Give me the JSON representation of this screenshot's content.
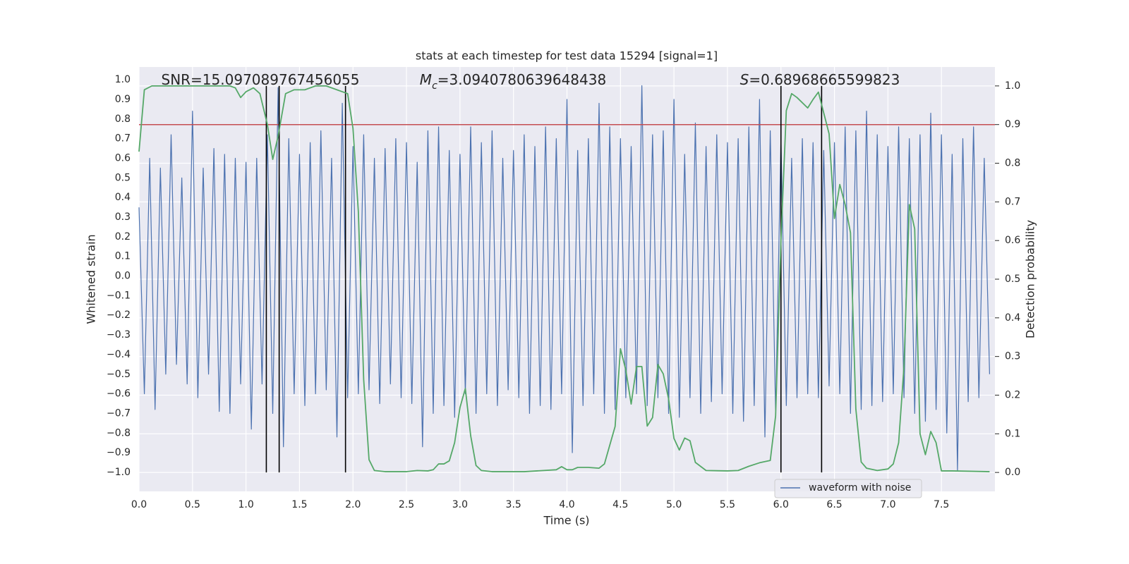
{
  "chart_data": {
    "type": "line",
    "title": "stats at each timestep for test data 15294 [signal=1]",
    "xlabel": "Time (s)",
    "ylabel": "Whitened strain",
    "y2label": "Detection probability",
    "xlim": [
      0,
      8.0
    ],
    "ylim": [
      -1.097,
      1.065
    ],
    "y2lim": [
      -0.049,
      1.049
    ],
    "xticks": [
      {
        "value": 0,
        "label": "0.0"
      },
      {
        "value": 0.5,
        "label": "0.5"
      },
      {
        "value": 1,
        "label": "1.0"
      },
      {
        "value": 1.5,
        "label": "1.5"
      },
      {
        "value": 2,
        "label": "2.0"
      },
      {
        "value": 2.5,
        "label": "2.5"
      },
      {
        "value": 3,
        "label": "3.0"
      },
      {
        "value": 3.5,
        "label": "3.5"
      },
      {
        "value": 4,
        "label": "4.0"
      },
      {
        "value": 4.5,
        "label": "4.5"
      },
      {
        "value": 5,
        "label": "5.0"
      },
      {
        "value": 5.5,
        "label": "5.5"
      },
      {
        "value": 6,
        "label": "6.0"
      },
      {
        "value": 6.5,
        "label": "6.5"
      },
      {
        "value": 7,
        "label": "7.0"
      },
      {
        "value": 7.5,
        "label": "7.5"
      }
    ],
    "yticks": [
      {
        "value": 1,
        "label": "1.0"
      },
      {
        "value": 0.9,
        "label": "0.9"
      },
      {
        "value": 0.8,
        "label": "0.8"
      },
      {
        "value": 0.7,
        "label": "0.7"
      },
      {
        "value": 0.6,
        "label": "0.6"
      },
      {
        "value": 0.5,
        "label": "0.5"
      },
      {
        "value": 0.4,
        "label": "0.4"
      },
      {
        "value": 0.3,
        "label": "0.3"
      },
      {
        "value": 0.2,
        "label": "0.2"
      },
      {
        "value": 0.1,
        "label": "0.1"
      },
      {
        "value": 0,
        "label": "0.0"
      },
      {
        "value": -0.1,
        "label": "−0.1"
      },
      {
        "value": -0.2,
        "label": "−0.2"
      },
      {
        "value": -0.3,
        "label": "−0.3"
      },
      {
        "value": -0.4,
        "label": "−0.4"
      },
      {
        "value": -0.5,
        "label": "−0.5"
      },
      {
        "value": -0.6,
        "label": "−0.6"
      },
      {
        "value": -0.7,
        "label": "−0.7"
      },
      {
        "value": -0.8,
        "label": "−0.8"
      },
      {
        "value": -0.9,
        "label": "−0.9"
      },
      {
        "value": -1,
        "label": "−1.0"
      }
    ],
    "y2ticks": [
      {
        "value": 1,
        "label": "1.0"
      },
      {
        "value": 0.9,
        "label": "0.9"
      },
      {
        "value": 0.8,
        "label": "0.8"
      },
      {
        "value": 0.7,
        "label": "0.7"
      },
      {
        "value": 0.6,
        "label": "0.6"
      },
      {
        "value": 0.5,
        "label": "0.5"
      },
      {
        "value": 0.4,
        "label": "0.4"
      },
      {
        "value": 0.3,
        "label": "0.3"
      },
      {
        "value": 0.2,
        "label": "0.2"
      },
      {
        "value": 0.1,
        "label": "0.1"
      },
      {
        "value": 0,
        "label": "0.0"
      }
    ],
    "grid": true,
    "legend": "lower right",
    "series": [
      {
        "name": "waveform with noise",
        "color": "#4c72b0",
        "x": [
          0,
          0.05,
          0.1,
          0.15,
          0.2,
          0.25,
          0.3,
          0.35,
          0.4,
          0.45,
          0.5,
          0.55,
          0.6,
          0.65,
          0.7,
          0.75,
          0.8,
          0.85,
          0.9,
          0.95,
          1,
          1.05,
          1.1,
          1.15,
          1.2,
          1.25,
          1.3,
          1.35,
          1.4,
          1.45,
          1.5,
          1.55,
          1.6,
          1.65,
          1.7,
          1.75,
          1.8,
          1.85,
          1.9,
          1.95,
          2,
          2.05,
          2.1,
          2.15,
          2.2,
          2.25,
          2.3,
          2.35,
          2.4,
          2.45,
          2.5,
          2.55,
          2.6,
          2.65,
          2.7,
          2.75,
          2.8,
          2.85,
          2.9,
          2.95,
          3,
          3.05,
          3.1,
          3.15,
          3.2,
          3.25,
          3.3,
          3.35,
          3.4,
          3.45,
          3.5,
          3.55,
          3.6,
          3.65,
          3.7,
          3.75,
          3.8,
          3.85,
          3.9,
          3.95,
          4,
          4.05,
          4.1,
          4.15,
          4.2,
          4.25,
          4.3,
          4.35,
          4.4,
          4.45,
          4.5,
          4.55,
          4.6,
          4.65,
          4.7,
          4.75,
          4.8,
          4.85,
          4.9,
          4.95,
          5,
          5.05,
          5.1,
          5.15,
          5.2,
          5.25,
          5.3,
          5.35,
          5.4,
          5.45,
          5.5,
          5.55,
          5.6,
          5.65,
          5.7,
          5.75,
          5.8,
          5.85,
          5.9,
          5.95,
          6,
          6.05,
          6.1,
          6.15,
          6.2,
          6.25,
          6.3,
          6.35,
          6.4,
          6.45,
          6.5,
          6.55,
          6.6,
          6.65,
          6.7,
          6.75,
          6.8,
          6.85,
          6.9,
          6.95,
          7,
          7.05,
          7.1,
          7.15,
          7.2,
          7.25,
          7.3,
          7.35,
          7.4,
          7.45,
          7.5,
          7.55,
          7.6,
          7.65,
          7.7,
          7.75,
          7.8,
          7.85,
          7.9,
          7.95
        ],
        "values": [
          0.35,
          -0.6,
          0.6,
          -0.68,
          0.55,
          -0.5,
          0.72,
          -0.45,
          0.5,
          -0.55,
          0.84,
          -0.62,
          0.55,
          -0.5,
          0.65,
          -0.69,
          0.62,
          -0.7,
          0.6,
          -0.55,
          0.58,
          -0.78,
          0.6,
          -0.55,
          0.72,
          -0.7,
          0.96,
          -0.87,
          0.7,
          -0.6,
          0.62,
          -0.66,
          0.68,
          -0.6,
          0.74,
          -0.58,
          0.6,
          -0.82,
          0.88,
          -0.62,
          0.66,
          -0.6,
          0.72,
          -0.58,
          0.6,
          -0.65,
          0.65,
          -0.55,
          0.7,
          -0.62,
          0.68,
          -0.65,
          0.58,
          -0.87,
          0.74,
          -0.7,
          0.76,
          -0.66,
          0.64,
          -0.72,
          0.62,
          -0.6,
          0.76,
          -0.7,
          0.68,
          -0.6,
          0.74,
          -0.66,
          0.6,
          -0.58,
          0.64,
          -0.62,
          0.72,
          -0.7,
          0.66,
          -0.66,
          0.76,
          -0.68,
          0.7,
          -0.6,
          0.9,
          -0.9,
          0.64,
          -0.66,
          0.7,
          -0.6,
          0.88,
          -0.7,
          0.76,
          -0.68,
          0.7,
          -0.62,
          0.66,
          -0.6,
          0.97,
          -0.66,
          0.72,
          -0.62,
          0.74,
          -0.7,
          0.9,
          -0.72,
          0.62,
          -0.62,
          0.78,
          -0.7,
          0.66,
          -0.64,
          0.72,
          -0.6,
          0.68,
          -0.7,
          0.7,
          -0.74,
          0.76,
          -0.66,
          0.9,
          -0.82,
          0.74,
          -0.7,
          0.7,
          -0.66,
          0.6,
          -0.62,
          0.7,
          -0.6,
          0.68,
          -0.62,
          0.64,
          -0.56,
          0.68,
          -0.6,
          0.76,
          -0.7,
          0.74,
          -0.68,
          0.84,
          -0.66,
          0.72,
          -0.64,
          0.66,
          -0.6,
          0.76,
          -0.62,
          0.7,
          -0.7,
          0.72,
          -0.74,
          0.83,
          -0.68,
          0.72,
          -0.8,
          0.62,
          -0.99,
          0.7,
          -0.64,
          0.76,
          -0.62,
          0.6,
          -0.5
        ]
      },
      {
        "color": "#55a868",
        "axis": "y2",
        "x": [
          0,
          0.05,
          0.12,
          0.3,
          0.5,
          0.7,
          0.85,
          0.9,
          0.95,
          1.0,
          1.07,
          1.13,
          1.2,
          1.25,
          1.3,
          1.37,
          1.45,
          1.55,
          1.65,
          1.75,
          1.85,
          1.95,
          2.0,
          2.05,
          2.1,
          2.15,
          2.2,
          2.3,
          2.5,
          2.6,
          2.7,
          2.75,
          2.8,
          2.85,
          2.9,
          2.95,
          3.0,
          3.05,
          3.1,
          3.15,
          3.2,
          3.3,
          3.6,
          3.9,
          3.95,
          4.0,
          4.05,
          4.1,
          4.2,
          4.3,
          4.35,
          4.45,
          4.5,
          4.55,
          4.6,
          4.65,
          4.7,
          4.75,
          4.8,
          4.85,
          4.9,
          4.95,
          5.0,
          5.05,
          5.1,
          5.15,
          5.2,
          5.3,
          5.5,
          5.6,
          5.7,
          5.8,
          5.9,
          5.95,
          6.0,
          6.05,
          6.1,
          6.15,
          6.25,
          6.3,
          6.35,
          6.4,
          6.45,
          6.5,
          6.55,
          6.6,
          6.65,
          6.7,
          6.75,
          6.8,
          6.9,
          7.0,
          7.05,
          7.1,
          7.15,
          7.2,
          7.25,
          7.3,
          7.35,
          7.4,
          7.45,
          7.5,
          7.6,
          7.95
        ],
        "values": [
          0.83,
          0.99,
          1.0,
          1.0,
          1.0,
          1.0,
          1.0,
          0.995,
          0.97,
          0.985,
          0.995,
          0.98,
          0.9,
          0.81,
          0.87,
          0.98,
          0.99,
          0.99,
          1.0,
          1.0,
          0.99,
          0.98,
          0.89,
          0.675,
          0.24,
          0.033,
          0.005,
          0.002,
          0.002,
          0.005,
          0.004,
          0.007,
          0.022,
          0.022,
          0.03,
          0.077,
          0.168,
          0.217,
          0.095,
          0.018,
          0.005,
          0.002,
          0.002,
          0.007,
          0.015,
          0.007,
          0.007,
          0.013,
          0.013,
          0.011,
          0.022,
          0.119,
          0.32,
          0.265,
          0.177,
          0.274,
          0.274,
          0.12,
          0.142,
          0.279,
          0.255,
          0.19,
          0.088,
          0.058,
          0.089,
          0.082,
          0.026,
          0.005,
          0.004,
          0.005,
          0.016,
          0.025,
          0.031,
          0.146,
          0.6,
          0.936,
          0.98,
          0.97,
          0.943,
          0.965,
          0.984,
          0.93,
          0.876,
          0.657,
          0.745,
          0.693,
          0.62,
          0.164,
          0.027,
          0.011,
          0.005,
          0.009,
          0.022,
          0.077,
          0.274,
          0.693,
          0.63,
          0.1,
          0.046,
          0.106,
          0.077,
          0.004,
          0.004,
          0.002
        ]
      }
    ],
    "hlines": [
      {
        "value": 0.9,
        "axis": "y2",
        "color": "#c44e52"
      }
    ],
    "vlines": {
      "x": [
        1.19,
        1.31,
        1.93,
        6.0,
        6.38
      ],
      "span": [
        0,
        1
      ],
      "axis": "y2",
      "color": "#000000"
    },
    "annotations": [
      {
        "parts": [
          "SNR=15.097089767456055"
        ]
      },
      {
        "parts": [
          "M",
          "c",
          "=3.0940780639648438"
        ]
      },
      {
        "parts": [
          "S",
          "=0.68968665599823"
        ]
      }
    ]
  }
}
